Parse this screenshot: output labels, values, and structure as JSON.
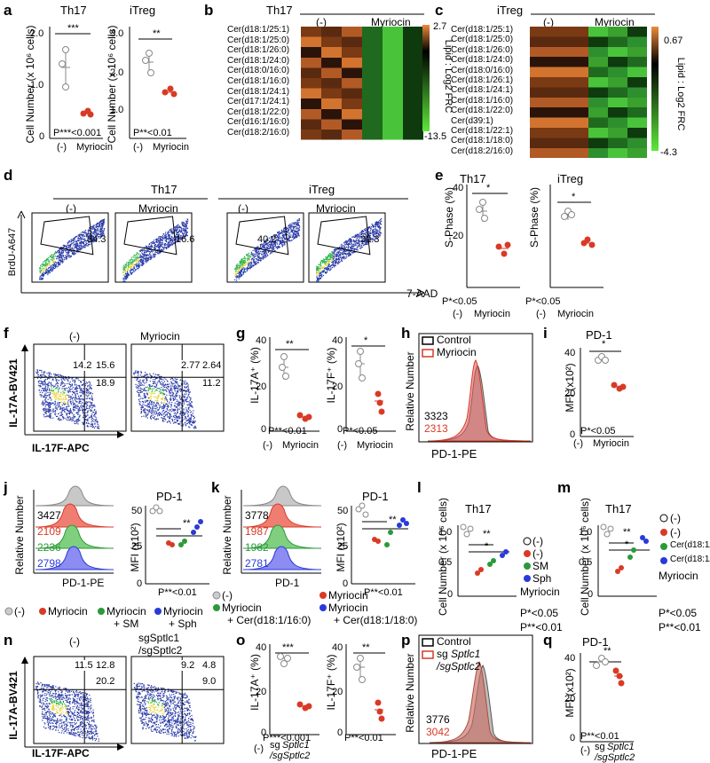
{
  "panels": {
    "a": {
      "label": "a",
      "left": {
        "title": "Th17",
        "ylabel": "Cell Number (x 10⁶ cells)",
        "ticks": [
          "2.0",
          "1.0",
          "0"
        ],
        "sig": "***",
        "pval": "P***<0.001"
      },
      "right": {
        "title": "iTreg",
        "ylabel": "Cell Number (x 10⁶ cells)",
        "ticks": [
          "3.0",
          "2.0",
          "1.0"
        ],
        "sig": "**",
        "pval": "P**<0.01"
      },
      "xcat": [
        "(-)",
        "Myriocin"
      ]
    },
    "b": {
      "label": "b",
      "title": "Th17",
      "groups": [
        "(-)",
        "Myriocin"
      ],
      "rows": [
        "Cer(d18:1/25:1)",
        "Cer(d18:1/25:0)",
        "Cer(d18:1/26:0)",
        "Cer(d18:1/24:0)",
        "Cer(d18:0/16:0)",
        "Cer(d18:1/16:0)",
        "Cer(d18:1/24:1)",
        "Cer(d17:1/24:1)",
        "Cer(d18:1/22:0)",
        "Cer(d16:1/16:0)",
        "Cer(d18:2/16:0)"
      ],
      "scale_max": "2.7",
      "scale_min": "-13.5",
      "scale_label": "Lipid : Log2 FRC"
    },
    "c": {
      "label": "c",
      "title": "iTreg",
      "groups": [
        "(-)",
        "Myriocin"
      ],
      "rows": [
        "Cer(d18:1/25:1)",
        "Cer(d18:1/25:0)",
        "Cer(d18:1/26:0)",
        "Cer(d18:1/24:0)",
        "Cer(d18:0/16:0)",
        "Cer(d18:1/26:1)",
        "Cer(d18:1/24:1)",
        "Cer(d18:1/16:0)",
        "Cer(d18:1/22:0)",
        "Cer(d39:1)",
        "Cer(d18:1/22:1)",
        "Cer(d18:1/18:0)",
        "Cer(d18:2/16:0)"
      ],
      "scale_max": "0.67",
      "scale_min": "-4.3",
      "scale_label": "Lipid : Log2 FRC"
    },
    "d": {
      "label": "d",
      "group1": "Th17",
      "group2": "iTreg",
      "cols": [
        "(-)",
        "Myriocin",
        "(-)",
        "Myriocin"
      ],
      "values": [
        "34.3",
        "16.6",
        "40.2",
        "30.3"
      ],
      "ylabel": "BrdU-A647",
      "xlabel": "7-AAD"
    },
    "e": {
      "label": "e",
      "left": {
        "title": "Th17",
        "ylabel": "S-Phase (%)",
        "ticks": [
          "40",
          "20",
          "0"
        ],
        "sig": "*",
        "pval": "P*<0.05"
      },
      "right": {
        "title": "iTreg",
        "ylabel": "S-Phase (%)",
        "ticks": [
          "40",
          "20",
          "0"
        ],
        "sig": "*",
        "pval": "P*<0.05"
      },
      "xcat": [
        "(-)",
        "Myriocin"
      ]
    },
    "f": {
      "label": "f",
      "cols": [
        "(-)",
        "Myriocin"
      ],
      "q1": [
        "14.2",
        "15.6",
        "18.9"
      ],
      "q2": [
        "2.77",
        "2.64",
        "11.2"
      ],
      "ylabel": "IL-17A-BV421",
      "xlabel": "IL-17F-APC"
    },
    "g": {
      "label": "g",
      "left": {
        "ylabel": "IL-17A⁺ (%)",
        "ticks": [
          "40",
          "20",
          "0"
        ],
        "sig": "**",
        "pval": "P**<0.01"
      },
      "right": {
        "ylabel": "IL-17F⁺ (%)",
        "ticks": [
          "40",
          "20",
          "0"
        ],
        "sig": "*",
        "pval": "P*<0.05"
      },
      "xcat": [
        "(-)",
        "Myriocin"
      ]
    },
    "h": {
      "label": "h",
      "legend": [
        "Control",
        "Myriocin"
      ],
      "values": [
        "3323",
        "2313"
      ],
      "ylabel": "Relative Number",
      "xlabel": "PD-1-PE"
    },
    "i": {
      "label": "i",
      "title": "PD-1",
      "ylabel": "MFI (x10²)",
      "ticks": [
        "40",
        "20",
        "0"
      ],
      "sig": "*",
      "pval": "P*<0.05",
      "xcat": [
        "(-)",
        "Myriocin"
      ]
    },
    "j": {
      "label": "j",
      "values": [
        "3427",
        "2109",
        "2236",
        "2798"
      ],
      "ylabel": "Relative Number",
      "xlabel": "PD-1-PE",
      "bar_title": "PD-1",
      "bar_ylabel": "MFI (x10²)",
      "ticks": [
        "50",
        "25",
        "0"
      ],
      "sig": "**",
      "pval": "P**<0.01",
      "legend": [
        "(-)",
        "Myriocin",
        "Myriocin",
        "+ SM",
        "Myriocin",
        "+ Sph"
      ]
    },
    "k": {
      "label": "k",
      "values": [
        "3778",
        "1987",
        "1982",
        "2781"
      ],
      "ylabel": "Relative Number",
      "xlabel": "PD-1",
      "bar_title": "PD-1",
      "bar_ylabel": "MFI (x10²)",
      "ticks": [
        "50",
        "25",
        "0"
      ],
      "sig": "**",
      "pval": "P**<0.01",
      "legend": [
        "(-)",
        "Myriocin",
        "Myriocin",
        "+ Cer(d18:1/16:0)",
        "Myriocin",
        "+ Cer(d18:1/18:0)"
      ]
    },
    "l": {
      "label": "l",
      "title": "Th17",
      "ylabel": "Cell Number (x 10⁶ cells)",
      "ticks": [
        "1.0",
        "0.5",
        "0"
      ],
      "sig1": "*",
      "sig2": "**",
      "legend": [
        "(-)",
        "(-)",
        "SM",
        "Sph"
      ],
      "legend_group": "Myriocin",
      "pvals": [
        "P*<0.05",
        "P**<0.01"
      ]
    },
    "m": {
      "label": "m",
      "title": "Th17",
      "ylabel": "Cell Number (x 10⁶ cells)",
      "ticks": [
        "1.0",
        "0.5",
        "0"
      ],
      "sig1": "*",
      "sig2": "**",
      "legend": [
        "(-)",
        "(-)",
        "Cer(d18:1/16:0)",
        "Cer(d18:1/18:0)"
      ],
      "legend_group": "Myriocin",
      "pvals": [
        "P*<0.05",
        "P**<0.01"
      ]
    },
    "n": {
      "label": "n",
      "cols": [
        "(-)",
        "sgSptlc1",
        "/sgSptlc2"
      ],
      "q1": [
        "11.5",
        "12.8",
        "20.2"
      ],
      "q2": [
        "9.2",
        "4.8",
        "9.0"
      ],
      "ylabel": "IL-17A-BV421",
      "xlabel": "IL-17F-APC"
    },
    "o": {
      "label": "o",
      "left": {
        "ylabel": "IL-17A⁺ (%)",
        "ticks": [
          "40",
          "20",
          "0"
        ],
        "sig": "***",
        "pval": "P***<0.001"
      },
      "right": {
        "ylabel": "IL-17F⁺ (%)",
        "ticks": [
          "40",
          "20",
          "0"
        ],
        "sig": "**",
        "pval": "P**<0.01"
      },
      "xcat": [
        "(-)",
        "sg",
        "Sptlc1",
        "/sgSptlc2"
      ]
    },
    "p": {
      "label": "p",
      "legend": [
        "Control",
        "sg",
        "Sptlc1",
        "/sgSptlc2"
      ],
      "values": [
        "3776",
        "3042"
      ],
      "ylabel": "Relative Number",
      "xlabel": "PD-1-PE"
    },
    "q": {
      "label": "q",
      "title": "PD-1",
      "ylabel": "MFI (x10²)",
      "ticks": [
        "40",
        "20",
        "0"
      ],
      "sig": "**",
      "pval": "P**<0.01",
      "xcat": [
        "(-)",
        "sg",
        "Sptlc1",
        "/sgSptlc2"
      ]
    }
  },
  "colors": {
    "control": "#999999",
    "myriocin": "#d93a26",
    "sm": "#2a9a3a",
    "sph": "#2a3ad9",
    "heat_hi": "#f08a3a",
    "heat_mid": "#000000",
    "heat_lo": "#5ee83a"
  }
}
